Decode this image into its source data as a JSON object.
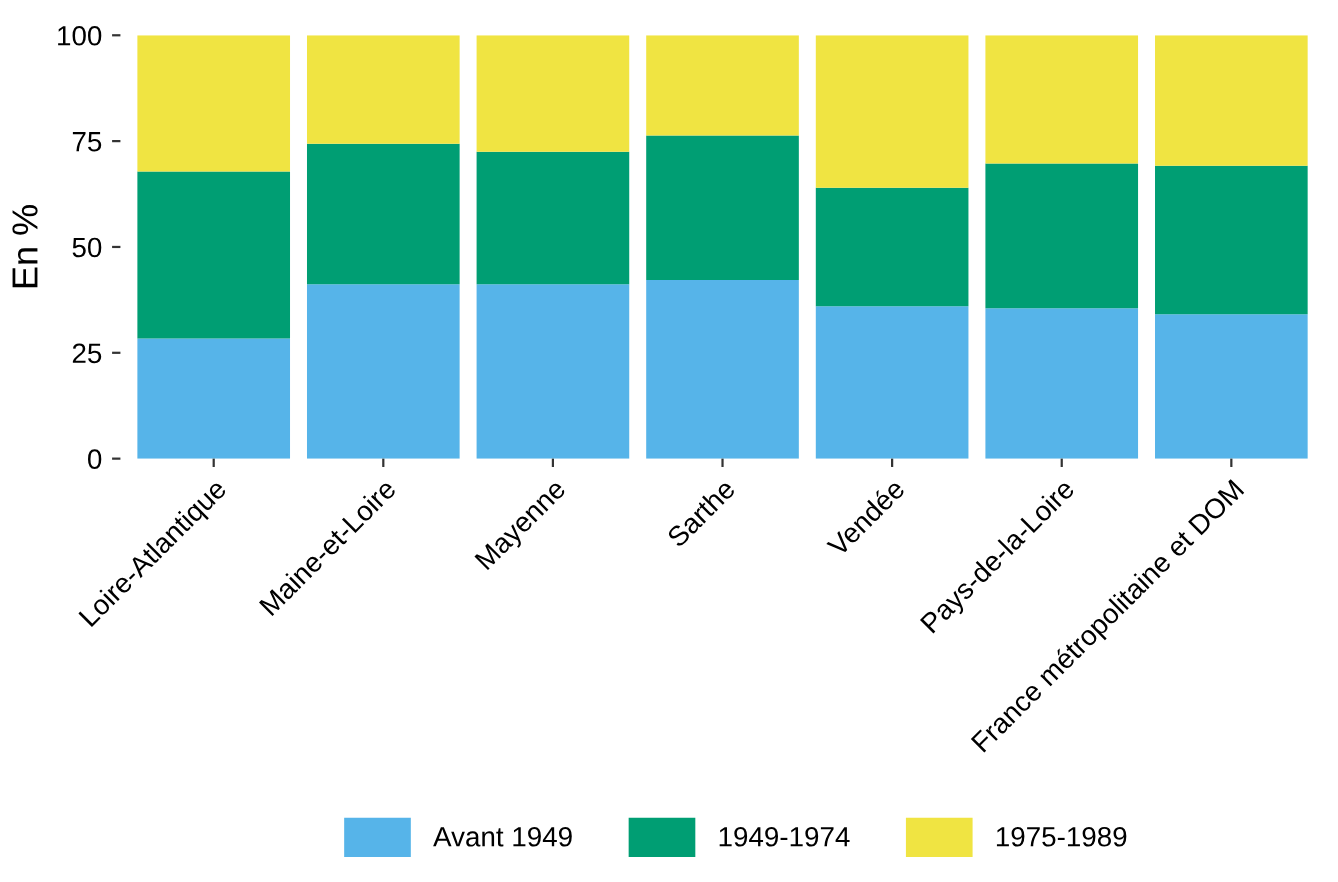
{
  "chart_data": {
    "type": "bar",
    "stacked": true,
    "ylabel": "En %",
    "categories": [
      "Loire-Atlantique",
      "Maine-et-Loire",
      "Mayenne",
      "Sarthe",
      "Vendée",
      "Pays-de-la-Loire",
      "France métropolitaine et DOM"
    ],
    "series": [
      {
        "name": "Avant 1949",
        "color": "#56b4e9",
        "values": [
          28.4,
          41.2,
          41.2,
          42.2,
          36,
          35.5,
          34.1
        ]
      },
      {
        "name": "1949-1974",
        "color": "#009e73",
        "values": [
          39.4,
          33.2,
          31.3,
          34.1,
          28,
          34.2,
          35.1
        ]
      },
      {
        "name": "1975-1989",
        "color": "#f0e442",
        "values": [
          32.2,
          25.6,
          27.5,
          23.7,
          36,
          30.3,
          30.8
        ]
      }
    ],
    "ylim": [
      0,
      100
    ],
    "yticks": [
      0,
      25,
      50,
      75,
      100
    ],
    "grid": false,
    "legend": "bottom"
  }
}
